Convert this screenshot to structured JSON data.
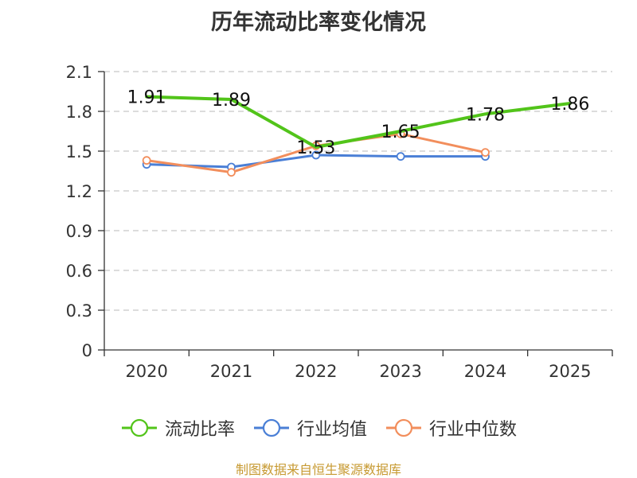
{
  "title": "历年流动比率变化情况",
  "source_note": "制图数据来自恒生聚源数据库",
  "chart_data": {
    "type": "line",
    "title": "历年流动比率变化情况",
    "categories": [
      "2020",
      "2021",
      "2022",
      "2023",
      "2024",
      "2025"
    ],
    "ylim": [
      0,
      2.1
    ],
    "yticks": [
      "0",
      "0.3",
      "0.6",
      "0.9",
      "1.2",
      "1.5",
      "1.8",
      "2.1"
    ],
    "grid": "horizontal dashed",
    "legend_position": "bottom",
    "series": [
      {
        "name": "流动比率",
        "color": "#52c41a",
        "values": [
          1.91,
          1.89,
          1.53,
          1.65,
          1.78,
          1.86
        ],
        "labels": [
          "1.91",
          "1.89",
          "1.53",
          "1.65",
          "1.78",
          "1.86"
        ],
        "show_markers": false
      },
      {
        "name": "行业均值",
        "color": "#4a7fd6",
        "values": [
          1.4,
          1.38,
          1.47,
          1.46,
          1.46,
          null
        ],
        "show_markers": true
      },
      {
        "name": "行业中位数",
        "color": "#f28e5c",
        "values": [
          1.43,
          1.34,
          1.54,
          1.63,
          1.49,
          null
        ],
        "show_markers": true
      }
    ]
  }
}
